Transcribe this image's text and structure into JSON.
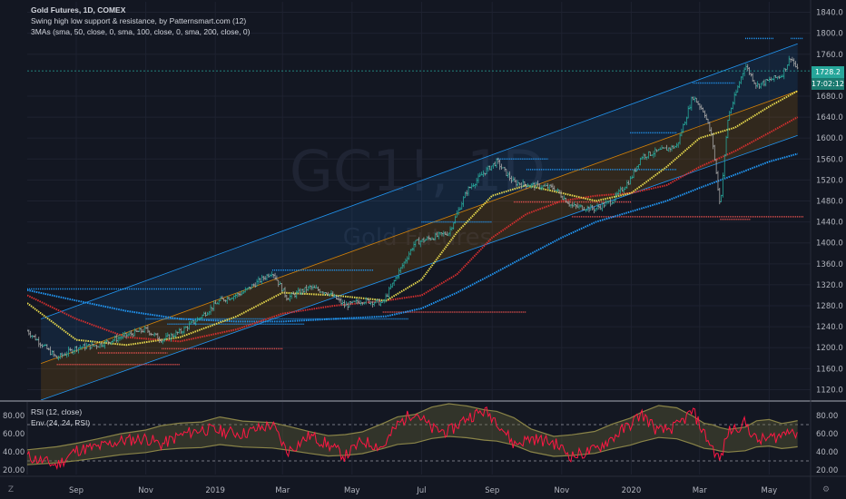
{
  "legend": {
    "title": "Gold Futures, 1D, COMEX",
    "indicator_swing": "Swing high low support & resistance, by Patternsmart.com (12)",
    "indicator_mas": "3MAs (sma, 50, close, 0, sma, 100, close, 0, sma, 200, close, 0)"
  },
  "rsi_legend": {
    "rsi": "RSI (12, close)",
    "env": "Env (24, 24, RSI)"
  },
  "watermark": {
    "symbol": "GC1!",
    "interval": "1D",
    "name": "Gold Futures"
  },
  "price_tag": {
    "value": "1728.2",
    "countdown": "17:02:12",
    "color": "#26a69a"
  },
  "buttons": {
    "bottom_left": "Z",
    "bottom_right": "⚙"
  },
  "colors": {
    "background": "#131722",
    "up_candle": "#26a69a",
    "down_candle": "#a5a5a5",
    "sma50": "#e6d84d",
    "sma100": "#d32f2f",
    "sma200": "#2196f3",
    "channel": "#2196f3",
    "resistance": "#2196f3",
    "support": "#ef5350",
    "rsi": "#ff1744",
    "env_fill": "#6d6a3a"
  },
  "chart_data": {
    "type": "candlestick",
    "x_tick_labels": [
      "Sep",
      "Nov",
      "2019",
      "Mar",
      "May",
      "Jul",
      "Sep",
      "Nov",
      "2020",
      "Mar",
      "May"
    ],
    "price_axis": {
      "ticks": [
        1120.0,
        1160.0,
        1200.0,
        1240.0,
        1280.0,
        1320.0,
        1360.0,
        1400.0,
        1440.0,
        1480.0,
        1520.0,
        1560.0,
        1600.0,
        1640.0,
        1680.0,
        1760.0,
        1800.0,
        1840.0
      ],
      "range": [
        1100,
        1860
      ]
    },
    "rsi_axis": {
      "ticks": [
        20.0,
        40.0,
        60.0,
        80.0
      ],
      "range": [
        15,
        95
      ],
      "overbought": 70,
      "oversold": 30
    },
    "close_path": [
      [
        "2018-07-20",
        1232
      ],
      [
        "2018-08-15",
        1180
      ],
      [
        "2018-09-01",
        1200
      ],
      [
        "2018-09-20",
        1205
      ],
      [
        "2018-10-10",
        1220
      ],
      [
        "2018-11-01",
        1235
      ],
      [
        "2018-11-15",
        1215
      ],
      [
        "2018-12-01",
        1230
      ],
      [
        "2018-12-20",
        1260
      ],
      [
        "2019-01-05",
        1290
      ],
      [
        "2019-01-25",
        1305
      ],
      [
        "2019-02-20",
        1345
      ],
      [
        "2019-03-05",
        1295
      ],
      [
        "2019-03-25",
        1315
      ],
      [
        "2019-04-10",
        1305
      ],
      [
        "2019-04-25",
        1280
      ],
      [
        "2019-05-10",
        1290
      ],
      [
        "2019-05-28",
        1285
      ],
      [
        "2019-06-10",
        1340
      ],
      [
        "2019-06-25",
        1400
      ],
      [
        "2019-07-10",
        1410
      ],
      [
        "2019-07-25",
        1420
      ],
      [
        "2019-08-10",
        1500
      ],
      [
        "2019-08-25",
        1535
      ],
      [
        "2019-09-05",
        1555
      ],
      [
        "2019-09-20",
        1515
      ],
      [
        "2019-10-05",
        1510
      ],
      [
        "2019-10-25",
        1505
      ],
      [
        "2019-11-10",
        1470
      ],
      [
        "2019-11-30",
        1465
      ],
      [
        "2019-12-15",
        1480
      ],
      [
        "2019-12-31",
        1520
      ],
      [
        "2020-01-10",
        1565
      ],
      [
        "2020-01-25",
        1575
      ],
      [
        "2020-02-10",
        1585
      ],
      [
        "2020-02-24",
        1680
      ],
      [
        "2020-03-05",
        1650
      ],
      [
        "2020-03-12",
        1600
      ],
      [
        "2020-03-19",
        1470
      ],
      [
        "2020-03-26",
        1640
      ],
      [
        "2020-04-10",
        1740
      ],
      [
        "2020-04-20",
        1700
      ],
      [
        "2020-05-01",
        1710
      ],
      [
        "2020-05-12",
        1720
      ],
      [
        "2020-05-20",
        1755
      ],
      [
        "2020-05-26",
        1728
      ]
    ],
    "sma50_path": [
      [
        "2018-07-20",
        1285
      ],
      [
        "2018-09-01",
        1215
      ],
      [
        "2018-10-15",
        1205
      ],
      [
        "2018-12-01",
        1220
      ],
      [
        "2019-01-20",
        1260
      ],
      [
        "2019-03-01",
        1305
      ],
      [
        "2019-04-15",
        1300
      ],
      [
        "2019-05-31",
        1290
      ],
      [
        "2019-07-01",
        1330
      ],
      [
        "2019-08-01",
        1420
      ],
      [
        "2019-09-01",
        1490
      ],
      [
        "2019-10-01",
        1510
      ],
      [
        "2019-11-01",
        1495
      ],
      [
        "2019-12-01",
        1480
      ],
      [
        "2020-01-01",
        1495
      ],
      [
        "2020-02-01",
        1545
      ],
      [
        "2020-03-01",
        1600
      ],
      [
        "2020-04-01",
        1620
      ],
      [
        "2020-05-01",
        1660
      ],
      [
        "2020-05-26",
        1690
      ]
    ],
    "sma100_path": [
      [
        "2018-07-20",
        1300
      ],
      [
        "2018-09-01",
        1255
      ],
      [
        "2018-10-15",
        1220
      ],
      [
        "2018-12-01",
        1212
      ],
      [
        "2019-01-20",
        1235
      ],
      [
        "2019-03-01",
        1265
      ],
      [
        "2019-04-15",
        1280
      ],
      [
        "2019-05-31",
        1290
      ],
      [
        "2019-07-01",
        1300
      ],
      [
        "2019-08-01",
        1340
      ],
      [
        "2019-09-01",
        1410
      ],
      [
        "2019-10-01",
        1455
      ],
      [
        "2019-11-01",
        1480
      ],
      [
        "2019-12-01",
        1490
      ],
      [
        "2020-01-01",
        1495
      ],
      [
        "2020-02-01",
        1510
      ],
      [
        "2020-03-01",
        1545
      ],
      [
        "2020-04-01",
        1575
      ],
      [
        "2020-05-01",
        1610
      ],
      [
        "2020-05-26",
        1640
      ]
    ],
    "sma200_path": [
      [
        "2018-07-20",
        1310
      ],
      [
        "2018-09-01",
        1290
      ],
      [
        "2018-10-15",
        1270
      ],
      [
        "2018-12-01",
        1255
      ],
      [
        "2019-01-20",
        1250
      ],
      [
        "2019-03-01",
        1250
      ],
      [
        "2019-04-15",
        1255
      ],
      [
        "2019-05-31",
        1260
      ],
      [
        "2019-07-01",
        1275
      ],
      [
        "2019-08-01",
        1305
      ],
      [
        "2019-09-01",
        1340
      ],
      [
        "2019-10-01",
        1375
      ],
      [
        "2019-11-01",
        1410
      ],
      [
        "2019-12-01",
        1440
      ],
      [
        "2020-01-01",
        1460
      ],
      [
        "2020-02-01",
        1480
      ],
      [
        "2020-03-01",
        1505
      ],
      [
        "2020-04-01",
        1530
      ],
      [
        "2020-05-01",
        1555
      ],
      [
        "2020-05-26",
        1570
      ]
    ],
    "channel_upper": [
      [
        "2018-08-01",
        1255
      ],
      [
        "2020-05-26",
        1780
      ]
    ],
    "channel_mid": [
      [
        "2018-08-01",
        1170
      ],
      [
        "2020-05-26",
        1690
      ]
    ],
    "channel_lower": [
      [
        "2018-08-01",
        1100
      ],
      [
        "2020-05-26",
        1605
      ]
    ],
    "resistance_levels": [
      {
        "price": 1312,
        "from": "2018-07-20",
        "to": "2018-12-20"
      },
      {
        "price": 1255,
        "from": "2018-11-01",
        "to": "2019-06-20"
      },
      {
        "price": 1245,
        "from": "2018-11-20",
        "to": "2019-03-20"
      },
      {
        "price": 1348,
        "from": "2019-02-20",
        "to": "2019-05-20"
      },
      {
        "price": 1440,
        "from": "2019-07-01",
        "to": "2019-09-01"
      },
      {
        "price": 1560,
        "from": "2019-09-05",
        "to": "2019-10-20"
      },
      {
        "price": 1540,
        "from": "2019-10-01",
        "to": "2020-02-10"
      },
      {
        "price": 1610,
        "from": "2019-12-31",
        "to": "2020-02-10"
      },
      {
        "price": 1705,
        "from": "2020-02-24",
        "to": "2020-04-01"
      },
      {
        "price": 1790,
        "from": "2020-04-10",
        "to": "2020-05-05"
      },
      {
        "price": 1790,
        "from": "2020-05-20",
        "to": "2020-05-31"
      }
    ],
    "support_levels": [
      {
        "price": 1168,
        "from": "2018-08-15",
        "to": "2018-12-01"
      },
      {
        "price": 1198,
        "from": "2018-11-15",
        "to": "2019-03-01"
      },
      {
        "price": 1190,
        "from": "2018-09-20",
        "to": "2018-11-20"
      },
      {
        "price": 1268,
        "from": "2019-05-28",
        "to": "2019-10-01"
      },
      {
        "price": 1478,
        "from": "2019-09-20",
        "to": "2020-01-01"
      },
      {
        "price": 1450,
        "from": "2019-11-10",
        "to": "2020-05-31"
      },
      {
        "price": 1445,
        "from": "2020-03-19",
        "to": "2020-04-15"
      }
    ],
    "rsi_path": [
      [
        "2018-07-20",
        35
      ],
      [
        "2018-08-15",
        25
      ],
      [
        "2018-09-01",
        42
      ],
      [
        "2018-09-20",
        45
      ],
      [
        "2018-10-10",
        52
      ],
      [
        "2018-11-01",
        55
      ],
      [
        "2018-11-15",
        48
      ],
      [
        "2018-12-01",
        58
      ],
      [
        "2018-12-20",
        65
      ],
      [
        "2019-01-05",
        63
      ],
      [
        "2019-01-25",
        60
      ],
      [
        "2019-02-20",
        70
      ],
      [
        "2019-03-05",
        40
      ],
      [
        "2019-03-25",
        58
      ],
      [
        "2019-04-10",
        48
      ],
      [
        "2019-04-25",
        35
      ],
      [
        "2019-05-10",
        52
      ],
      [
        "2019-05-28",
        45
      ],
      [
        "2019-06-10",
        70
      ],
      [
        "2019-06-25",
        85
      ],
      [
        "2019-07-10",
        65
      ],
      [
        "2019-07-25",
        62
      ],
      [
        "2019-08-10",
        78
      ],
      [
        "2019-08-25",
        85
      ],
      [
        "2019-09-05",
        75
      ],
      [
        "2019-09-20",
        48
      ],
      [
        "2019-10-05",
        55
      ],
      [
        "2019-10-25",
        50
      ],
      [
        "2019-11-10",
        35
      ],
      [
        "2019-11-30",
        42
      ],
      [
        "2019-12-15",
        55
      ],
      [
        "2019-12-31",
        70
      ],
      [
        "2020-01-10",
        82
      ],
      [
        "2020-01-25",
        62
      ],
      [
        "2020-02-10",
        68
      ],
      [
        "2020-02-24",
        85
      ],
      [
        "2020-03-05",
        60
      ],
      [
        "2020-03-12",
        45
      ],
      [
        "2020-03-19",
        30
      ],
      [
        "2020-03-26",
        62
      ],
      [
        "2020-04-10",
        72
      ],
      [
        "2020-04-20",
        52
      ],
      [
        "2020-05-01",
        55
      ],
      [
        "2020-05-12",
        58
      ],
      [
        "2020-05-20",
        68
      ],
      [
        "2020-05-26",
        54
      ]
    ]
  }
}
